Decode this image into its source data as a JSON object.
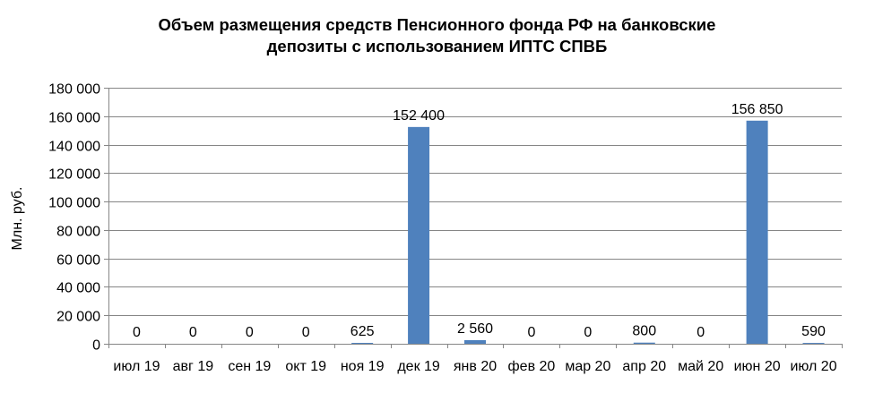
{
  "chart_data": {
    "type": "bar",
    "title_lines": [
      "Объем размещения средств Пенсионного фонда РФ  на банковские",
      "депозиты с использованием ИПТС СПВБ"
    ],
    "ylabel": "Млн. руб.",
    "xlabel": "",
    "ylim": [
      0,
      180000
    ],
    "y_ticks": [
      {
        "value": 0,
        "label": "0"
      },
      {
        "value": 20000,
        "label": "20 000"
      },
      {
        "value": 40000,
        "label": "40 000"
      },
      {
        "value": 60000,
        "label": "60 000"
      },
      {
        "value": 80000,
        "label": "80 000"
      },
      {
        "value": 100000,
        "label": "100 000"
      },
      {
        "value": 120000,
        "label": "120 000"
      },
      {
        "value": 140000,
        "label": "140 000"
      },
      {
        "value": 160000,
        "label": "160 000"
      },
      {
        "value": 180000,
        "label": "180 000"
      }
    ],
    "grid": true,
    "legend": "none",
    "bar_color": "#4f81bd",
    "categories": [
      "июл 19",
      "авг 19",
      "сен 19",
      "окт 19",
      "ноя 19",
      "дек 19",
      "янв 20",
      "фев 20",
      "мар 20",
      "апр 20",
      "май 20",
      "июн 20",
      "июл 20"
    ],
    "values": [
      0,
      0,
      0,
      0,
      625,
      152400,
      2560,
      0,
      0,
      800,
      0,
      156850,
      590
    ],
    "data_labels": [
      "0",
      "0",
      "0",
      "0",
      "625",
      "152 400",
      "2 560",
      "0",
      "0",
      "800",
      "0",
      "156 850",
      "590"
    ]
  }
}
